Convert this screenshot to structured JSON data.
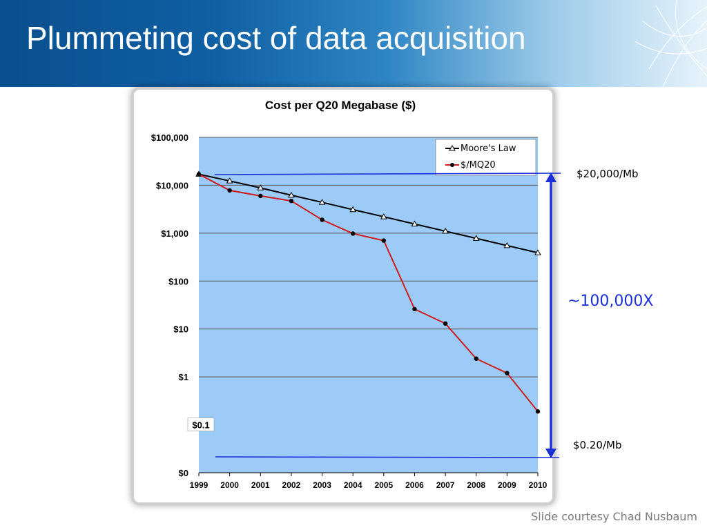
{
  "slide": {
    "title": "Plummeting cost of data acquisition",
    "credit": "Slide courtesy Chad Nusbaum"
  },
  "annotations": {
    "top_label": "$20,000/Mb",
    "bottom_label": "$0.20/Mb",
    "ratio_label": "~100,000X",
    "line_color": "#1a2fd8"
  },
  "chart_data": {
    "type": "line",
    "title": "Cost per Q20 Megabase ($)",
    "xlabel": "",
    "ylabel": "",
    "y_scale": "log",
    "ylim": [
      0.01,
      100000
    ],
    "categories": [
      "1999",
      "2000",
      "2001",
      "2002",
      "2003",
      "2004",
      "2005",
      "2006",
      "2007",
      "2008",
      "2009",
      "2010"
    ],
    "y_ticks": [
      {
        "value": 100000,
        "label": "$100,000"
      },
      {
        "value": 10000,
        "label": "$10,000"
      },
      {
        "value": 1000,
        "label": "$1,000"
      },
      {
        "value": 100,
        "label": "$100"
      },
      {
        "value": 10,
        "label": "$10"
      },
      {
        "value": 1,
        "label": "$1"
      },
      {
        "value": 0.01,
        "label": "$0"
      }
    ],
    "extra_tick": {
      "value": 0.1,
      "label": "$0.1"
    },
    "grid": true,
    "plot_background": "#9ccbf7",
    "legend_position": "top-right",
    "series": [
      {
        "name": "Moore's Law",
        "color": "#000000",
        "marker": "triangle",
        "values": [
          17000,
          12300,
          8800,
          6200,
          4400,
          3100,
          2200,
          1550,
          1100,
          780,
          550,
          390
        ]
      },
      {
        "name": "$/MQ20",
        "color": "#d01a1a",
        "marker": "circle",
        "values": [
          17000,
          7800,
          6000,
          4700,
          1900,
          980,
          700,
          26,
          13,
          2.4,
          1.2,
          0.19
        ]
      }
    ]
  }
}
